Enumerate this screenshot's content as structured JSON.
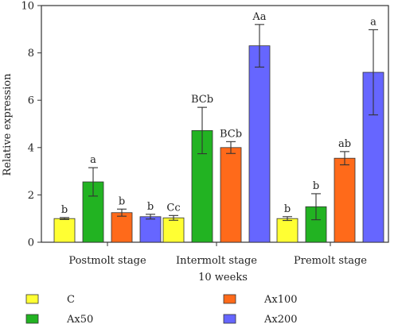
{
  "chart_data": {
    "type": "bar",
    "title": "",
    "xlabel": "10 weeks",
    "ylabel": "Relative expression",
    "ylim": [
      0,
      10
    ],
    "yticks": [
      0,
      2,
      4,
      6,
      8,
      10
    ],
    "grid": false,
    "legend_position": "bottom",
    "categories": [
      "Postmolt stage",
      "Intermolt stage",
      "Premolt stage"
    ],
    "series": [
      {
        "name": "C",
        "color": "#ffff33",
        "values": [
          1.0,
          1.03,
          1.0
        ],
        "errors": [
          0.04,
          0.1,
          0.08
        ],
        "labels": [
          "b",
          "Cc",
          "b"
        ]
      },
      {
        "name": "Ax50",
        "color": "#22b322",
        "values": [
          2.55,
          4.72,
          1.5
        ],
        "errors": [
          0.6,
          0.98,
          0.55
        ],
        "labels": [
          "a",
          "BCb",
          "b"
        ]
      },
      {
        "name": "Ax100",
        "color": "#ff6a1a",
        "values": [
          1.25,
          4.0,
          3.55
        ],
        "errors": [
          0.15,
          0.25,
          0.28
        ],
        "labels": [
          "b",
          "BCb",
          "ab"
        ]
      },
      {
        "name": "Ax200",
        "color": "#6666ff",
        "values": [
          1.08,
          8.3,
          7.18
        ],
        "errors": [
          0.1,
          0.9,
          1.8
        ],
        "labels": [
          "b",
          "Aa",
          "a"
        ]
      }
    ]
  }
}
